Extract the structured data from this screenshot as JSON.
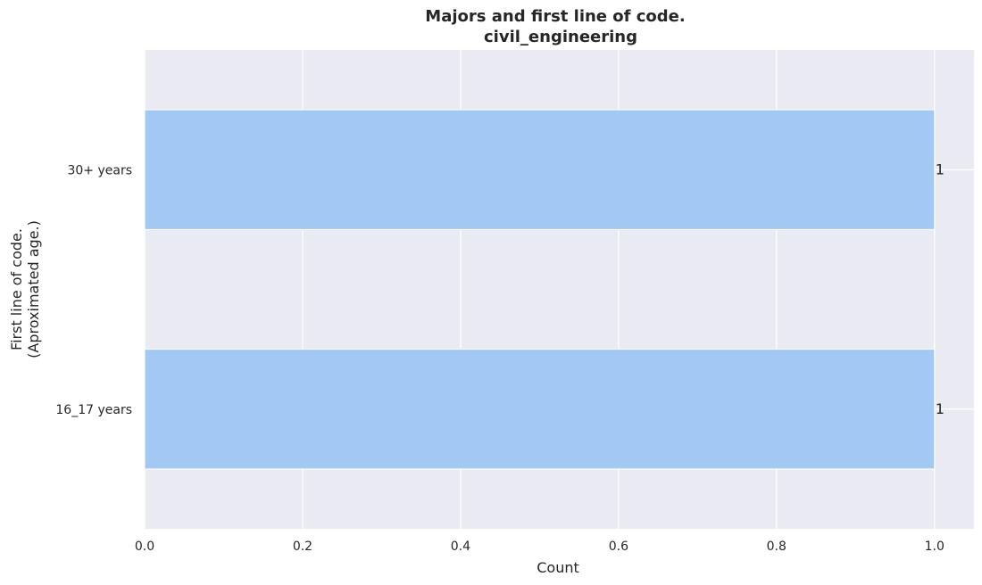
{
  "chart_data": {
    "type": "bar",
    "orientation": "horizontal",
    "title": "Majors and first line of code.",
    "subtitle": "civil_engineering",
    "xlabel": "Count",
    "ylabel": "First line of code.\n(Aproximated age.)",
    "categories": [
      "16_17 years",
      "30+ years"
    ],
    "values": [
      1,
      1
    ],
    "data_labels": [
      "1",
      "1"
    ],
    "xlim": [
      0,
      1.05
    ],
    "xticks": [
      0.0,
      0.2,
      0.4,
      0.6,
      0.8,
      1.0
    ],
    "xtick_labels": [
      "0.0",
      "0.2",
      "0.4",
      "0.6",
      "0.8",
      "1.0"
    ],
    "grid": true,
    "bar_color": "#a1c9f4",
    "background_color": "#eaeaf2"
  }
}
